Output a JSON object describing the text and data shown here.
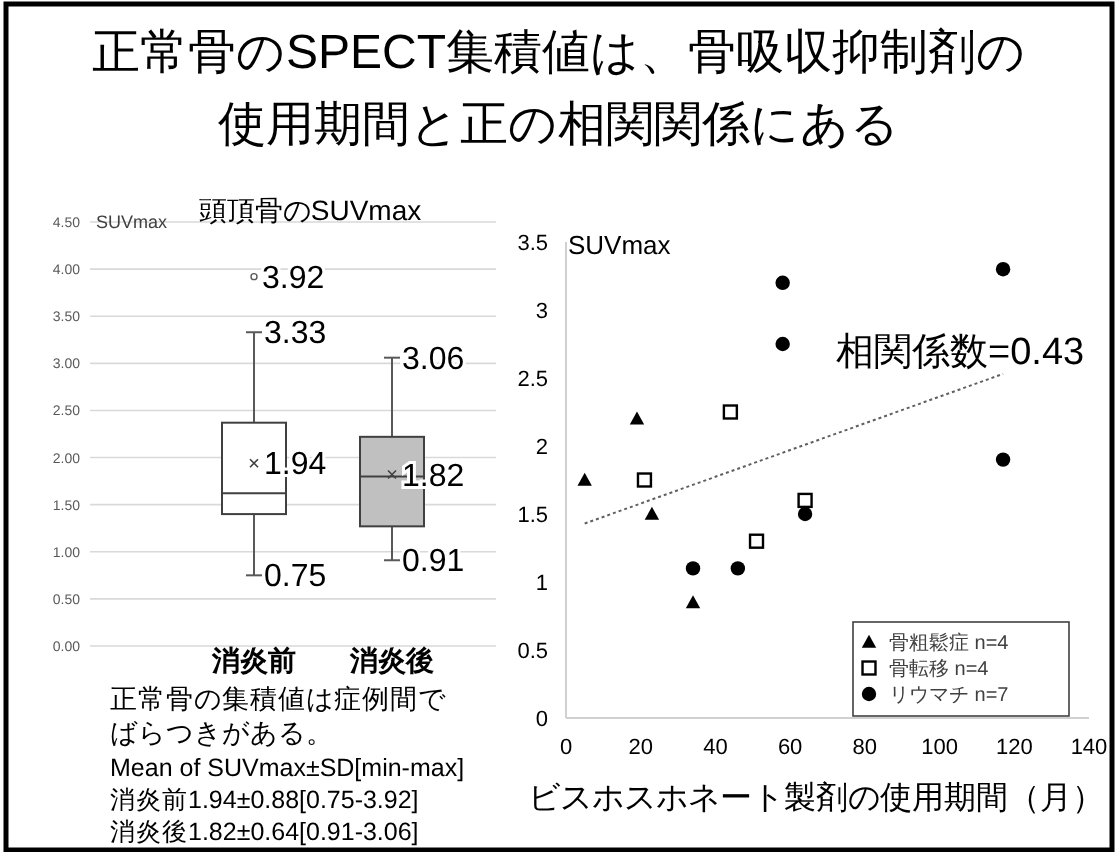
{
  "chart_data": [
    {
      "type": "other",
      "title": "正常骨のSPECT集積値は、骨吸収抑制剤の使用期間と正の相関関係にある"
    },
    {
      "type": "box",
      "title": "頭頂骨のSUVmax",
      "ylabel": "SUVmax",
      "categories": [
        "消炎前",
        "消炎後"
      ],
      "colors": [
        "#ffffff",
        "#c0c0c0"
      ],
      "boxes": [
        {
          "low": 0.75,
          "q1": 1.4,
          "median": 1.62,
          "q3": 2.37,
          "high": 3.33,
          "mean": 1.94,
          "outliers": [
            3.92
          ]
        },
        {
          "low": 0.91,
          "q1": 1.27,
          "median": 1.8,
          "q3": 2.22,
          "high": 3.06,
          "mean": 1.82
        }
      ],
      "ylim": [
        0,
        4.5
      ],
      "yticks": [
        {
          "value": 0,
          "label": "0.00"
        },
        {
          "value": 0.5,
          "label": "0.50"
        },
        {
          "value": 1,
          "label": "1.00"
        },
        {
          "value": 1.5,
          "label": "1.50"
        },
        {
          "value": 2,
          "label": "2.00"
        },
        {
          "value": 2.5,
          "label": "2.50"
        },
        {
          "value": 3,
          "label": "3.00"
        },
        {
          "value": 3.5,
          "label": "3.50"
        },
        {
          "value": 4,
          "label": "4.00"
        },
        {
          "value": 4.5,
          "label": "4.50"
        }
      ],
      "grid": "y",
      "annotations": [
        "3.92",
        {
          "text": "3.33",
          "x": "消炎前",
          "y": 3.33
        },
        {
          "text": "1.94",
          "x": "消炎前",
          "y": 1.94
        },
        {
          "text": "0.75",
          "x": "消炎前",
          "y": 0.75
        },
        {
          "text": "3.06",
          "x": "消炎後",
          "y": 3.06
        },
        {
          "text": "1.82",
          "x": "消炎後",
          "y": 1.82
        },
        {
          "text": "0.91",
          "x": "消炎後",
          "y": 0.91
        },
        "正常骨の集積値は症例間でばらつきがある。",
        "Mean of SUVmax±SD[min-max]",
        "消炎前1.94±0.88[0.75-3.92]",
        "消炎後1.82±0.64[0.91-3.06]"
      ]
    },
    {
      "type": "scatter",
      "ylabel": "SUVmax",
      "xlabel": "ビスホスホネート製剤の使用期間（月）",
      "xlim": [
        0,
        140
      ],
      "xticks": [
        0,
        20,
        40,
        60,
        80,
        100,
        120,
        140
      ],
      "ylim": [
        0,
        3.5
      ],
      "yticks": [
        0,
        0.5,
        1,
        1.5,
        2,
        2.5,
        3,
        3.5
      ],
      "legend": "bottom right",
      "annotations": [
        "相関係数=0.43"
      ],
      "series": [
        {
          "name": "骨粗鬆症 n=4",
          "color": "#000000",
          "marker": "triangle",
          "x": [
            5,
            19,
            23,
            34
          ],
          "values": [
            1.75,
            2.2,
            1.5,
            0.85
          ]
        },
        {
          "name": "骨転移 n=4",
          "color": "#000000",
          "marker": "square",
          "x": [
            21,
            44,
            51,
            64
          ],
          "values": [
            1.75,
            2.25,
            1.3,
            1.6
          ]
        },
        {
          "name": "リウマチ n=7",
          "color": "#000000",
          "marker": "circle",
          "x": [
            34,
            46,
            58,
            58,
            64,
            117,
            117
          ],
          "values": [
            1.1,
            1.1,
            3.2,
            2.75,
            1.5,
            3.3,
            1.9
          ]
        },
        {
          "type": "line",
          "color": "#606060",
          "line_style": "dotted",
          "x": [
            5,
            117
          ],
          "values": [
            1.43,
            2.53
          ]
        }
      ]
    }
  ]
}
